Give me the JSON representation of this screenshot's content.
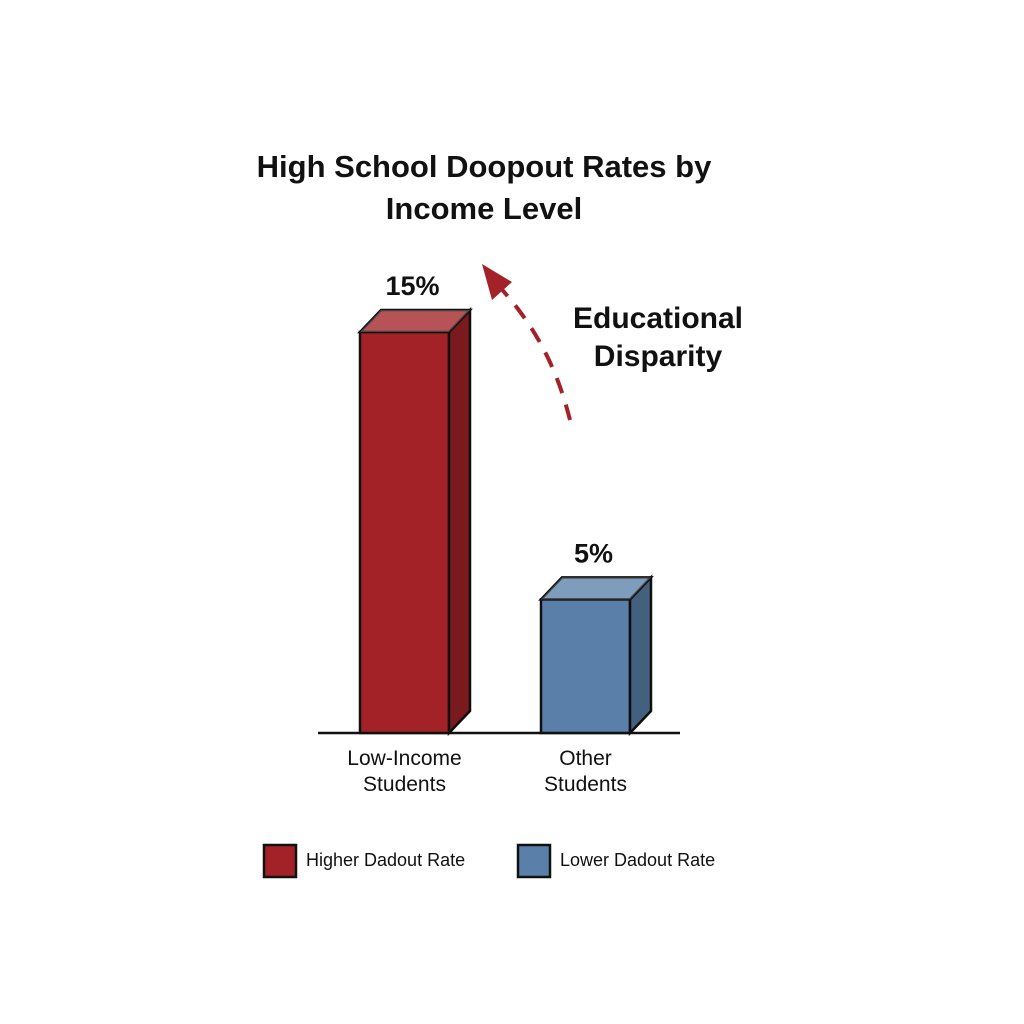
{
  "chart_data": {
    "type": "bar3d",
    "title": "High School Doopout Rates by Income Level",
    "annotation": "Educational Disparity",
    "categories": [
      "Low-Income Students",
      "Other Students"
    ],
    "values": [
      15,
      5
    ],
    "value_labels": [
      "15%",
      "5%"
    ],
    "colors": [
      "#a32228",
      "#5a80a9"
    ],
    "legend": [
      "Higher Dadout Rate",
      "Lower Dadout Rate"
    ]
  }
}
